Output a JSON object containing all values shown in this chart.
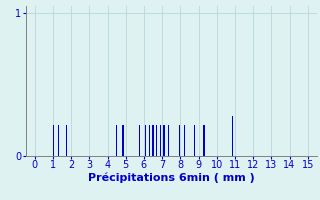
{
  "title": "",
  "xlabel": "Précipitations 6min ( mm )",
  "ylabel": "",
  "background_color": "#dff2f2",
  "bar_color": "#0000cc",
  "xlim": [
    -0.5,
    15.5
  ],
  "ylim": [
    0,
    1.05
  ],
  "yticks": [
    0,
    1
  ],
  "xticks": [
    0,
    1,
    2,
    3,
    4,
    5,
    6,
    7,
    8,
    9,
    10,
    11,
    12,
    13,
    14,
    15
  ],
  "bar_positions": [
    1.05,
    1.3,
    1.75,
    4.5,
    4.85,
    5.75,
    6.1,
    6.3,
    6.5,
    6.7,
    6.9,
    7.1,
    7.35,
    7.95,
    8.25,
    8.8,
    9.3,
    10.85
  ],
  "bar_heights": [
    0.22,
    0.22,
    0.22,
    0.22,
    0.22,
    0.22,
    0.22,
    0.22,
    0.22,
    0.22,
    0.22,
    0.22,
    0.22,
    0.22,
    0.22,
    0.22,
    0.22,
    0.28
  ],
  "bar_width": 0.07,
  "grid_color": "#b8d8d8",
  "axis_color": "#808080",
  "xlabel_fontsize": 8,
  "tick_fontsize": 7,
  "tick_color": "#0000cc"
}
